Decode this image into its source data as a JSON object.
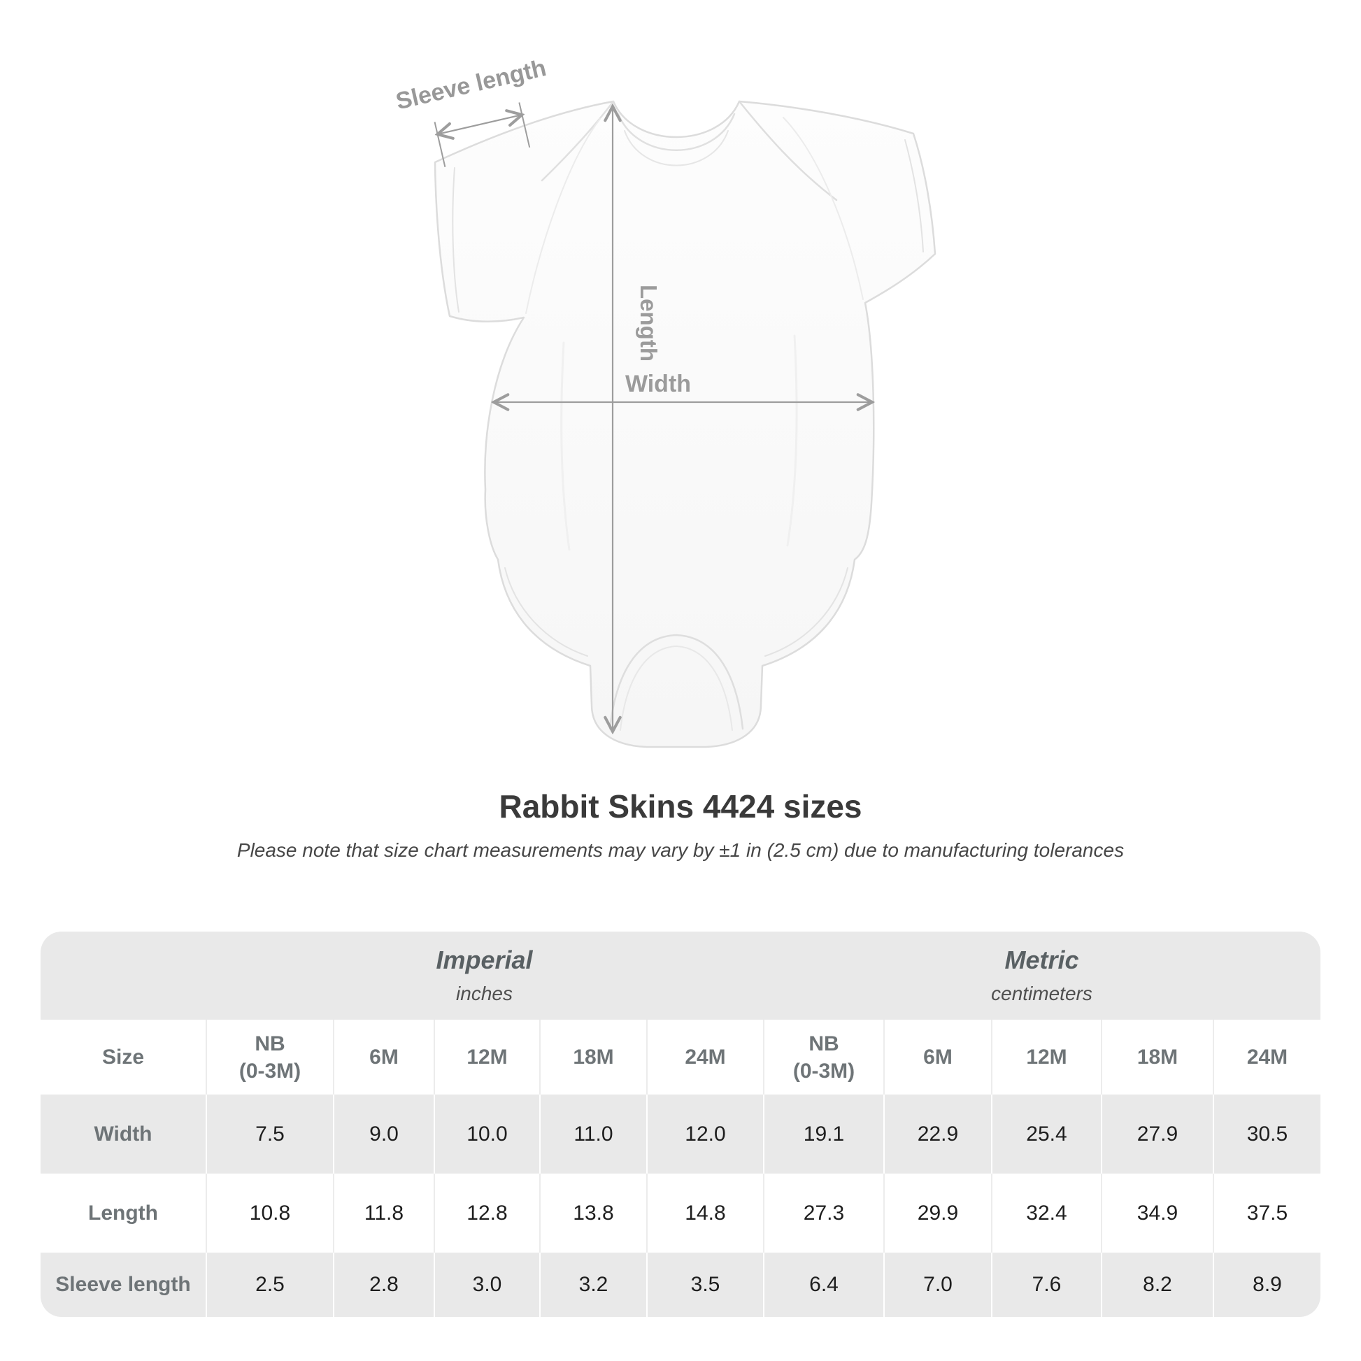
{
  "title": "Rabbit Skins 4424 sizes",
  "subtitle": "Please note that size chart measurements may vary by ±1 in (2.5 cm) due to manufacturing tolerances",
  "diagram": {
    "sleeve_label": "Sleeve length",
    "length_label": "Length",
    "width_label": "Width"
  },
  "table": {
    "size_label": "Size",
    "groups": [
      {
        "name": "Imperial",
        "unit": "inches"
      },
      {
        "name": "Metric",
        "unit": "centimeters"
      }
    ],
    "sizes": [
      [
        "NB",
        "(0-3M)"
      ],
      [
        "6M"
      ],
      [
        "12M"
      ],
      [
        "18M"
      ],
      [
        "24M"
      ]
    ],
    "rows": [
      {
        "label": "Width",
        "imperial": [
          "7.5",
          "9.0",
          "10.0",
          "11.0",
          "12.0"
        ],
        "metric": [
          "19.1",
          "22.9",
          "25.4",
          "27.9",
          "30.5"
        ]
      },
      {
        "label": "Length",
        "imperial": [
          "10.8",
          "11.8",
          "12.8",
          "13.8",
          "14.8"
        ],
        "metric": [
          "27.3",
          "29.9",
          "32.4",
          "34.9",
          "37.5"
        ]
      },
      {
        "label": "Sleeve length",
        "imperial": [
          "2.5",
          "2.8",
          "3.0",
          "3.2",
          "3.5"
        ],
        "metric": [
          "6.4",
          "7.0",
          "7.6",
          "8.2",
          "8.9"
        ]
      }
    ]
  },
  "colors": {
    "table_band": "#e9e9e9",
    "header_text": "#6e7477",
    "value_text": "#1e1e1e",
    "annotation_gray": "#9b9b9b",
    "title_text": "#3a3a3a",
    "garment_outline": "#dcdcdc"
  },
  "chart_data": {
    "type": "table",
    "title": "Rabbit Skins 4424 sizes",
    "note": "Please note that size chart measurements may vary by ±1 in (2.5 cm) due to manufacturing tolerances",
    "unit_groups": [
      {
        "name": "Imperial",
        "unit": "inches",
        "sizes": [
          "NB (0-3M)",
          "6M",
          "12M",
          "18M",
          "24M"
        ],
        "measurements": {
          "Width": [
            7.5,
            9.0,
            10.0,
            11.0,
            12.0
          ],
          "Length": [
            10.8,
            11.8,
            12.8,
            13.8,
            14.8
          ],
          "Sleeve length": [
            2.5,
            2.8,
            3.0,
            3.2,
            3.5
          ]
        }
      },
      {
        "name": "Metric",
        "unit": "centimeters",
        "sizes": [
          "NB (0-3M)",
          "6M",
          "12M",
          "18M",
          "24M"
        ],
        "measurements": {
          "Width": [
            19.1,
            22.9,
            25.4,
            27.9,
            30.5
          ],
          "Length": [
            27.3,
            29.9,
            32.4,
            34.9,
            37.5
          ],
          "Sleeve length": [
            6.4,
            7.0,
            7.6,
            8.2,
            8.9
          ]
        }
      }
    ]
  }
}
